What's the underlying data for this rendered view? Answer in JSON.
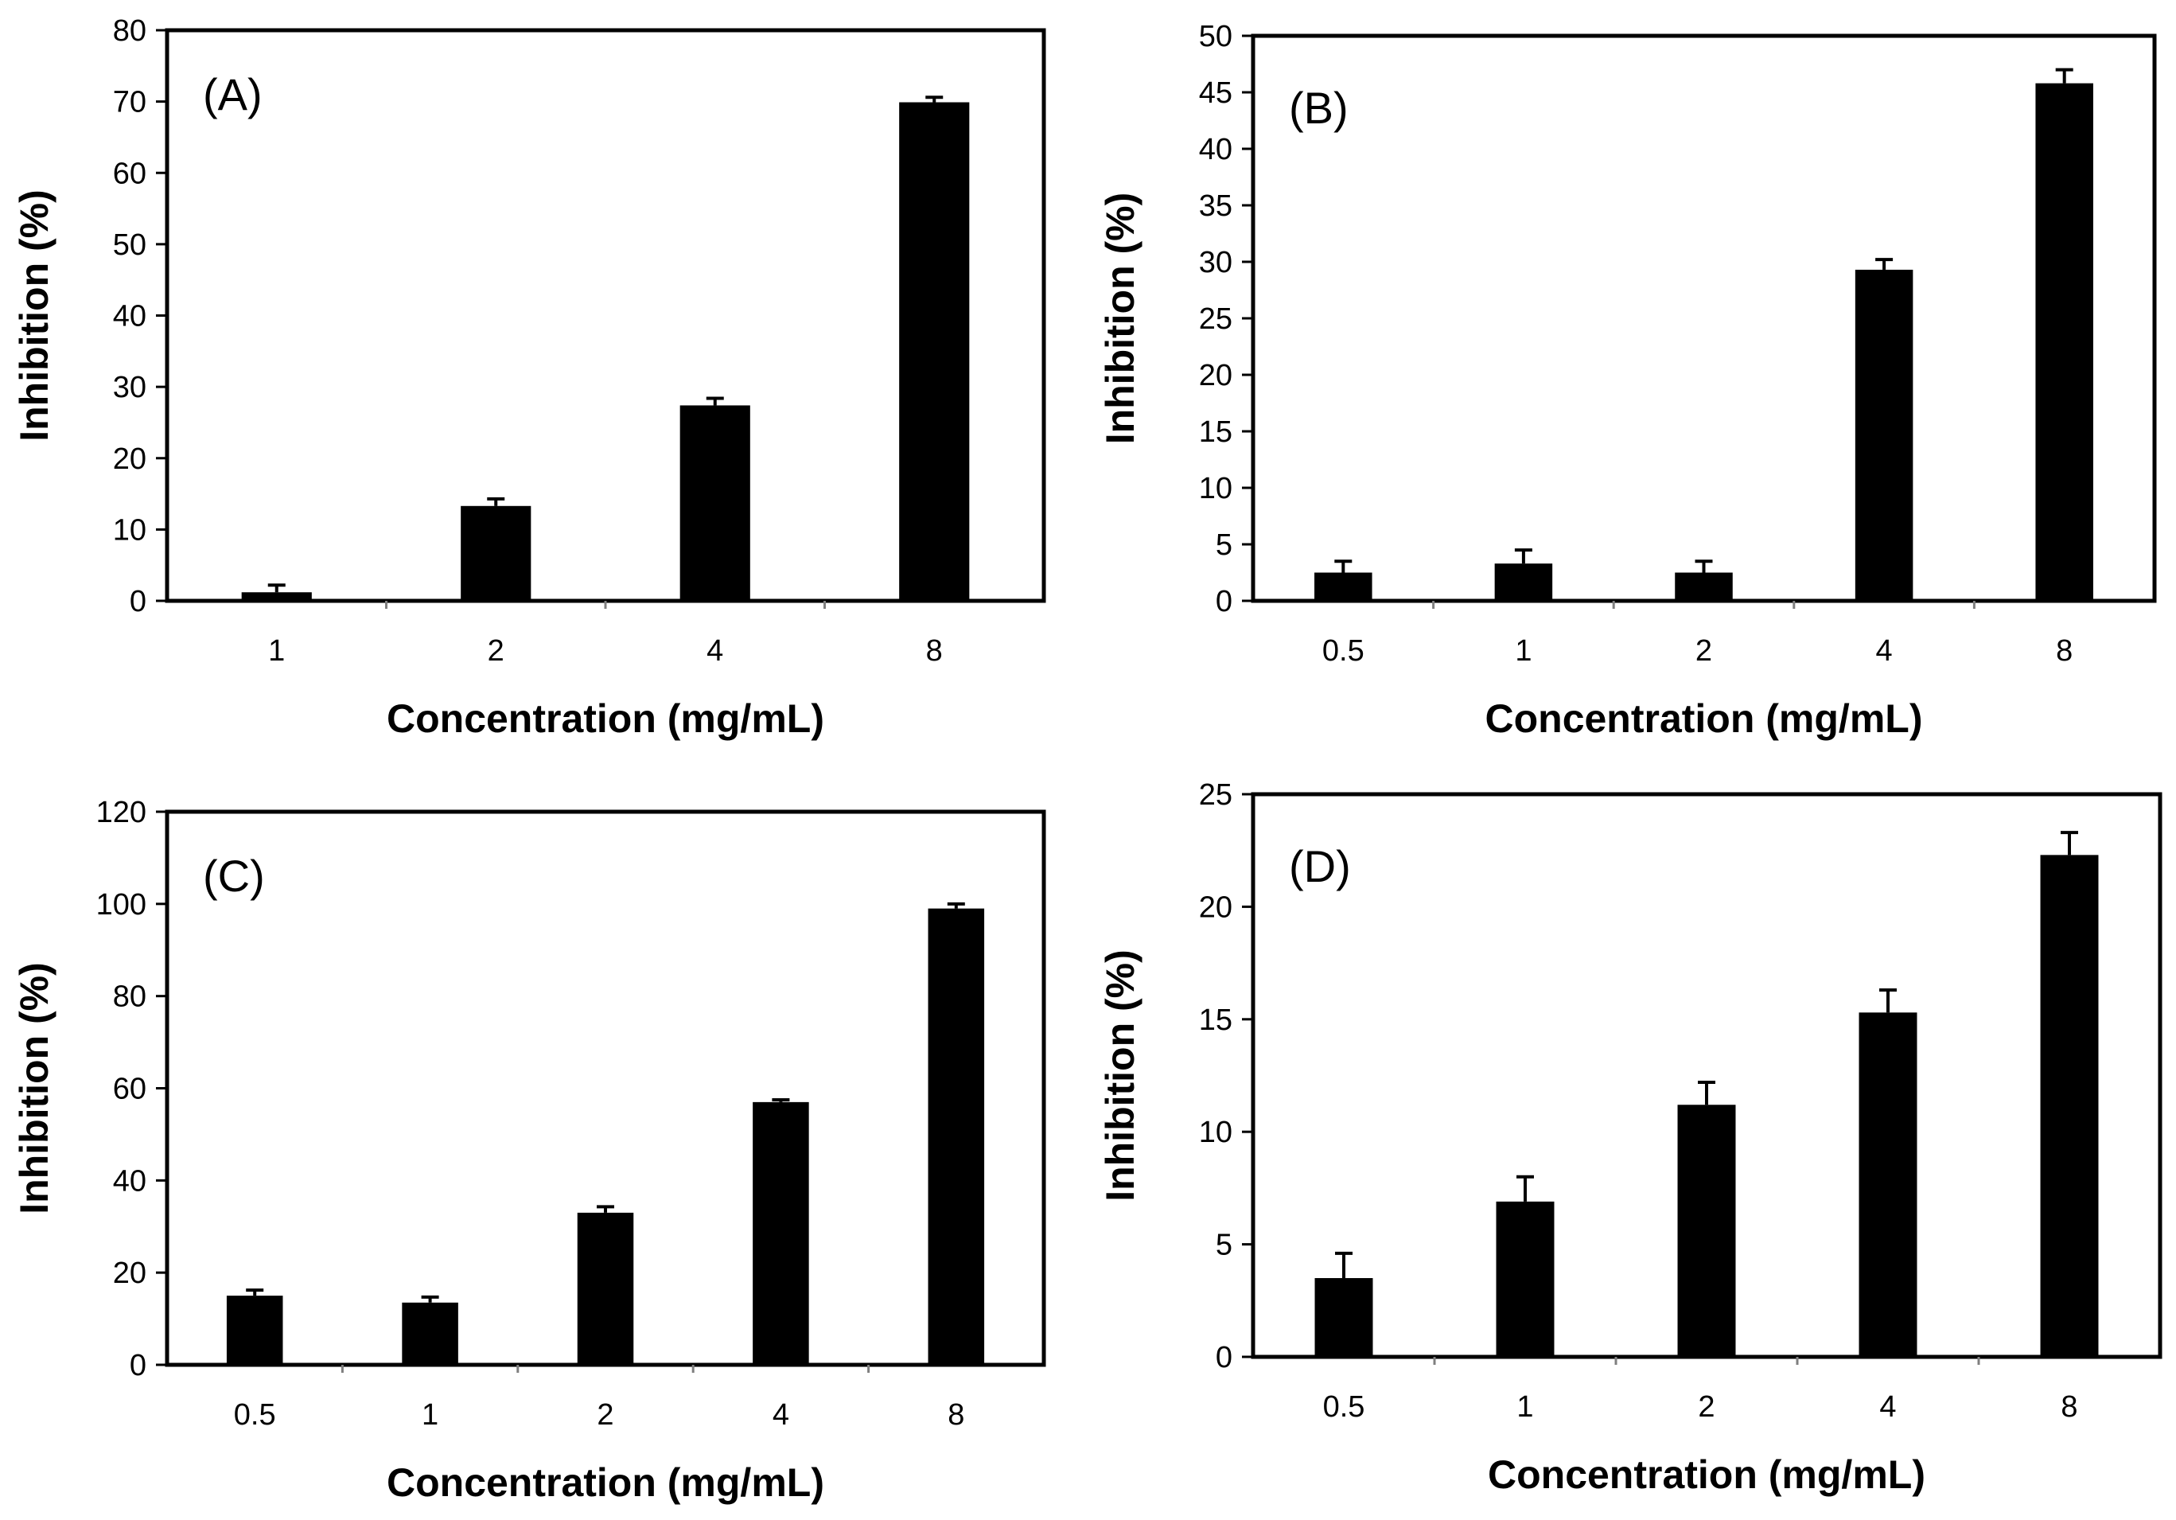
{
  "chart_data": [
    {
      "type": "bar",
      "panel_label": "(A)",
      "categories": [
        "1",
        "2",
        "4",
        "8"
      ],
      "values": [
        1.2,
        13.3,
        27.4,
        69.9
      ],
      "errors": [
        1.0,
        1.0,
        1.0,
        0.7
      ],
      "yticks": [
        "0",
        "10",
        "20",
        "30",
        "40",
        "50",
        "60",
        "70",
        "80"
      ],
      "ylim": [
        0,
        80
      ],
      "xlabel": "Concentration  (mg/mL)",
      "ylabel": "Inhibition  (%)",
      "bar_color": "#000000"
    },
    {
      "type": "bar",
      "panel_label": "(B)",
      "categories": [
        "0.5",
        "1",
        "2",
        "4",
        "8"
      ],
      "values": [
        2.5,
        3.3,
        2.5,
        29.3,
        45.8
      ],
      "errors": [
        1.0,
        1.2,
        1.0,
        0.9,
        1.2
      ],
      "yticks": [
        "0",
        "5",
        "10",
        "15",
        "20",
        "25",
        "30",
        "35",
        "40",
        "45",
        "50"
      ],
      "ylim": [
        0,
        50
      ],
      "xlabel": "Concentration  (mg/mL)",
      "ylabel": "Inhibition  (%)",
      "bar_color": "#000000"
    },
    {
      "type": "bar",
      "panel_label": "(C)",
      "categories": [
        "0.5",
        "1",
        "2",
        "4",
        "8"
      ],
      "values": [
        15,
        13.5,
        33,
        57,
        99
      ],
      "errors": [
        1.2,
        1.2,
        1.3,
        0.5,
        1.0
      ],
      "yticks": [
        "0",
        "20",
        "40",
        "60",
        "80",
        "100",
        "120"
      ],
      "ylim": [
        0,
        120
      ],
      "xlabel": "Concentration  (mg/mL)",
      "ylabel": "Inhibition  (%)",
      "bar_color": "#000000"
    },
    {
      "type": "bar",
      "panel_label": "(D)",
      "categories": [
        "0.5",
        "1",
        "2",
        "4",
        "8"
      ],
      "values": [
        3.5,
        6.9,
        11.2,
        15.3,
        22.3
      ],
      "errors": [
        1.1,
        1.1,
        1.0,
        1.0,
        1.0
      ],
      "yticks": [
        "0",
        "5",
        "10",
        "15",
        "20",
        "25"
      ],
      "ylim": [
        0,
        25
      ],
      "xlabel": "Concentration  (mg/mL)",
      "ylabel": "Inhibition  (%)",
      "bar_color": "#000000"
    }
  ]
}
